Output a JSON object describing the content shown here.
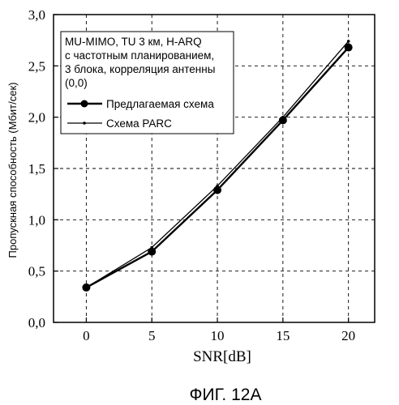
{
  "chart_data": {
    "type": "line",
    "title": "",
    "xlabel": "SNR[dB]",
    "ylabel": "Пропускная способность (Мбит/сек)",
    "x": [
      0,
      5,
      10,
      15,
      20
    ],
    "xticks": [
      "0",
      "5",
      "10",
      "15",
      "20"
    ],
    "yticks": [
      "0,0",
      "0,5",
      "1,0",
      "1,5",
      "2,0",
      "2,5",
      "3,0"
    ],
    "xlim": [
      -2.5,
      22
    ],
    "ylim": [
      0,
      3
    ],
    "grid": true,
    "legend": {
      "placement": "top-left",
      "header": [
        "MU-MIMO, TU 3 км, H-ARQ",
        "с частотным планированием,",
        "3 блока, корреляция антенны",
        "(0,0)"
      ]
    },
    "series": [
      {
        "name": "Предлагаемая схема",
        "values": [
          0.34,
          0.69,
          1.29,
          1.97,
          2.68
        ],
        "marker": "large-circle",
        "color": "#000000"
      },
      {
        "name": "Схема PARC",
        "values": [
          0.34,
          0.73,
          1.33,
          2.0,
          2.74
        ],
        "marker": "small-dot",
        "color": "#000000"
      }
    ],
    "caption": "ФИГ. 12А"
  }
}
